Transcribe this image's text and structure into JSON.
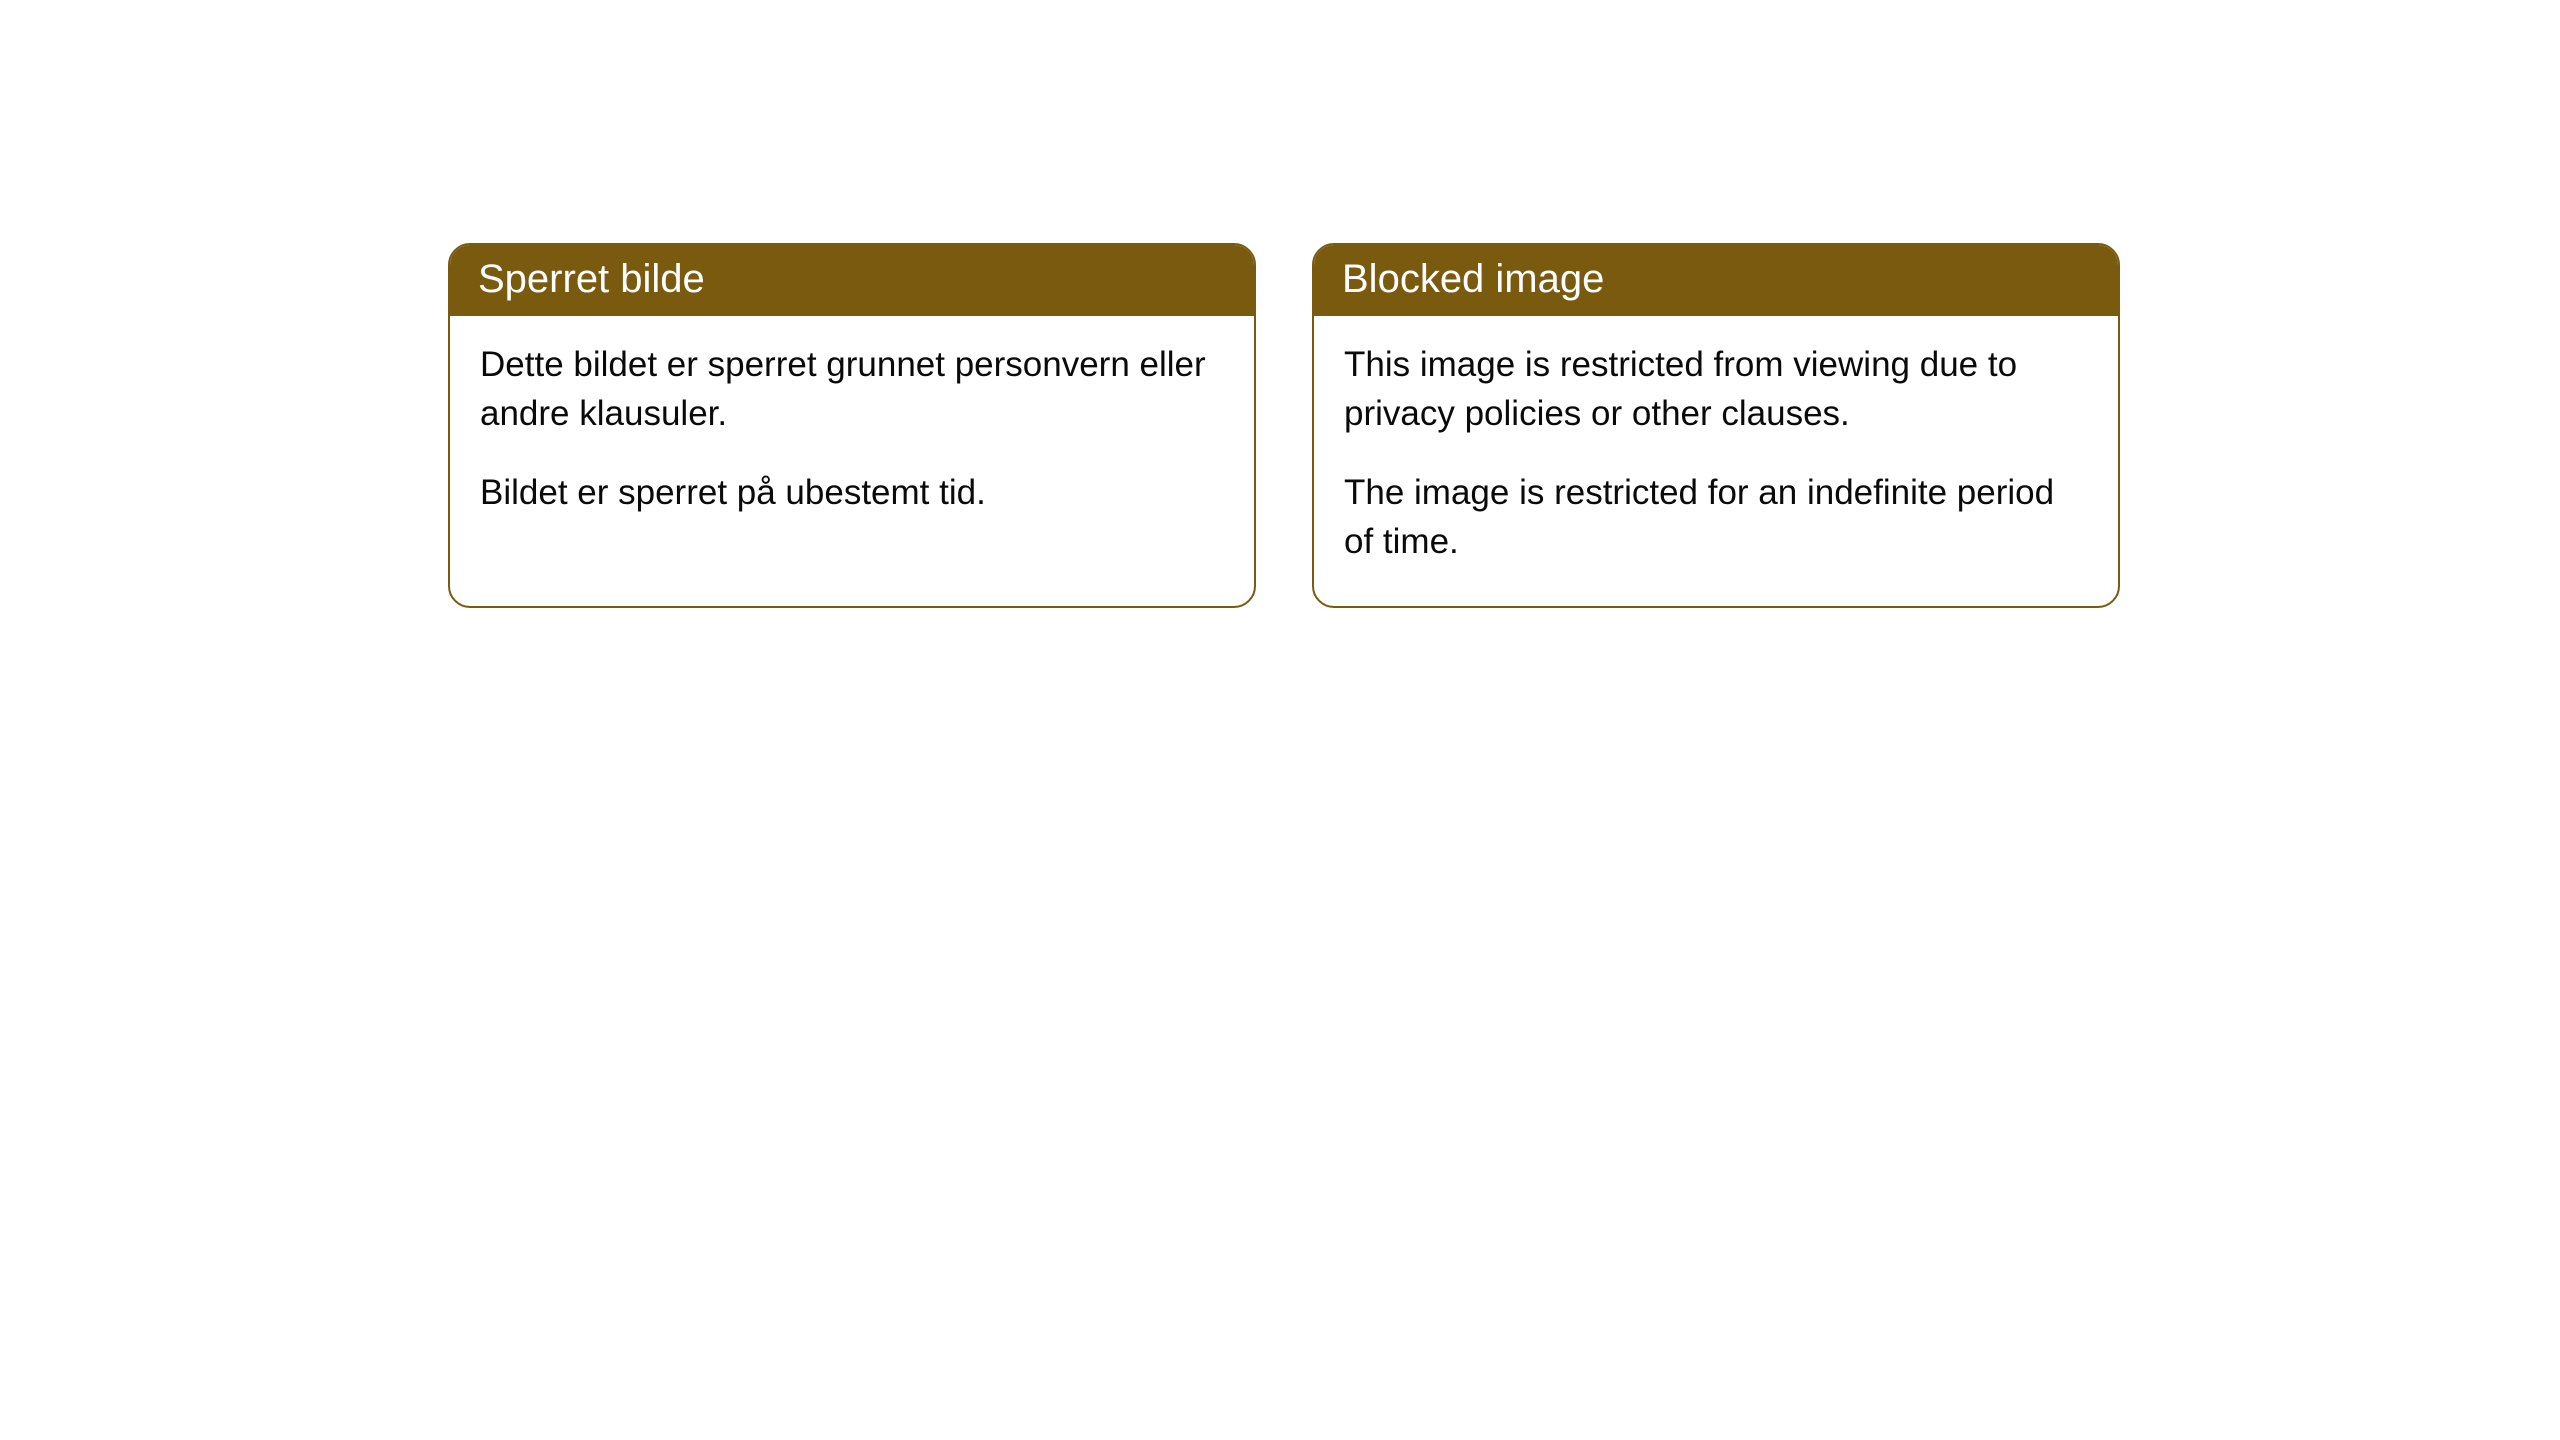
{
  "cards": [
    {
      "title": "Sperret bilde",
      "paragraph1": "Dette bildet er sperret grunnet personvern eller andre klausuler.",
      "paragraph2": "Bildet er sperret på ubestemt tid."
    },
    {
      "title": "Blocked image",
      "paragraph1": "This image is restricted from viewing due to privacy policies or other clauses.",
      "paragraph2": "The image is restricted for an indefinite period of time."
    }
  ],
  "style": {
    "header_bg_color": "#7a5a0f",
    "header_text_color": "#ffffff",
    "border_color": "#7a5a0f",
    "body_bg_color": "#ffffff",
    "body_text_color": "#0a0a0a",
    "border_radius": 22,
    "header_font_size": 40,
    "body_font_size": 35
  }
}
